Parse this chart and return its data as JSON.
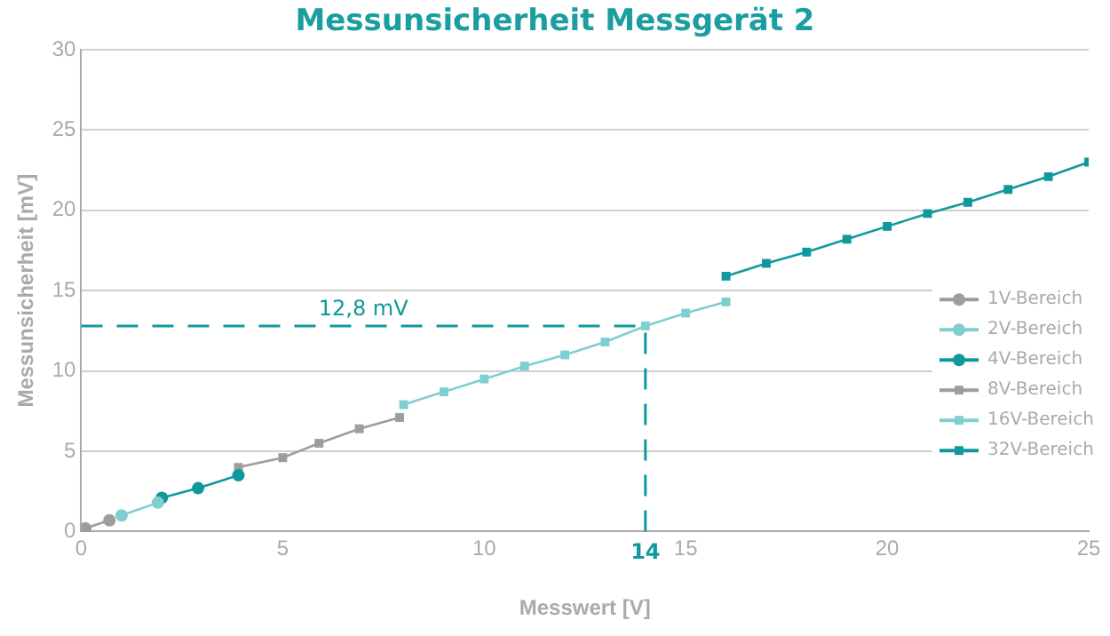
{
  "chart_data": {
    "type": "line",
    "title": "Messunsicherheit Messgerät 2",
    "xlabel": "Messwert [V]",
    "ylabel": "Messunsicherheit [mV]",
    "xlim": [
      0,
      25
    ],
    "xticks": [
      0,
      5,
      10,
      15,
      20,
      25
    ],
    "ylim": [
      0,
      30
    ],
    "yticks": [
      0,
      5,
      10,
      15,
      20,
      25,
      30
    ],
    "grid": "y",
    "legend": "right",
    "line_style": "solid",
    "series": [
      {
        "name": "1V-Bereich",
        "color": "#9d9d9d",
        "marker": "circle",
        "x": [
          0.1,
          0.7
        ],
        "values": [
          0.2,
          0.7
        ]
      },
      {
        "name": "2V-Bereich",
        "color": "#7fcfd1",
        "marker": "circle",
        "x": [
          1,
          1.9
        ],
        "values": [
          1.0,
          1.8
        ]
      },
      {
        "name": "4V-Bereich",
        "color": "#10999d",
        "marker": "circle",
        "x": [
          2,
          2.9,
          3.9
        ],
        "values": [
          2.1,
          2.7,
          3.5
        ]
      },
      {
        "name": "8V-Bereich",
        "color": "#9d9d9d",
        "marker": "square",
        "x": [
          3.9,
          5,
          5.9,
          6.9,
          7.9
        ],
        "values": [
          4.0,
          4.6,
          5.5,
          6.4,
          7.1
        ]
      },
      {
        "name": "16V-Bereich",
        "color": "#7fcfd1",
        "marker": "square",
        "x": [
          8,
          9,
          10,
          11,
          12,
          13,
          14,
          15,
          16
        ],
        "values": [
          7.9,
          8.7,
          9.5,
          10.3,
          11.0,
          11.8,
          12.8,
          13.6,
          14.3
        ]
      },
      {
        "name": "32V-Bereich",
        "color": "#10999d",
        "marker": "square",
        "x": [
          16,
          17,
          18,
          19,
          20,
          21,
          22,
          23,
          24,
          25
        ],
        "values": [
          15.9,
          16.7,
          17.4,
          18.2,
          19.0,
          19.8,
          20.5,
          21.3,
          22.1,
          23.0
        ]
      }
    ],
    "ref_lines": [
      {
        "axis": "y",
        "value": 12.8,
        "label": "12,8 mV",
        "color": "#10999d",
        "line_style": "dashed"
      },
      {
        "axis": "x",
        "value": 14,
        "label": "14",
        "color": "#10999d",
        "line_style": "dashed"
      }
    ]
  }
}
